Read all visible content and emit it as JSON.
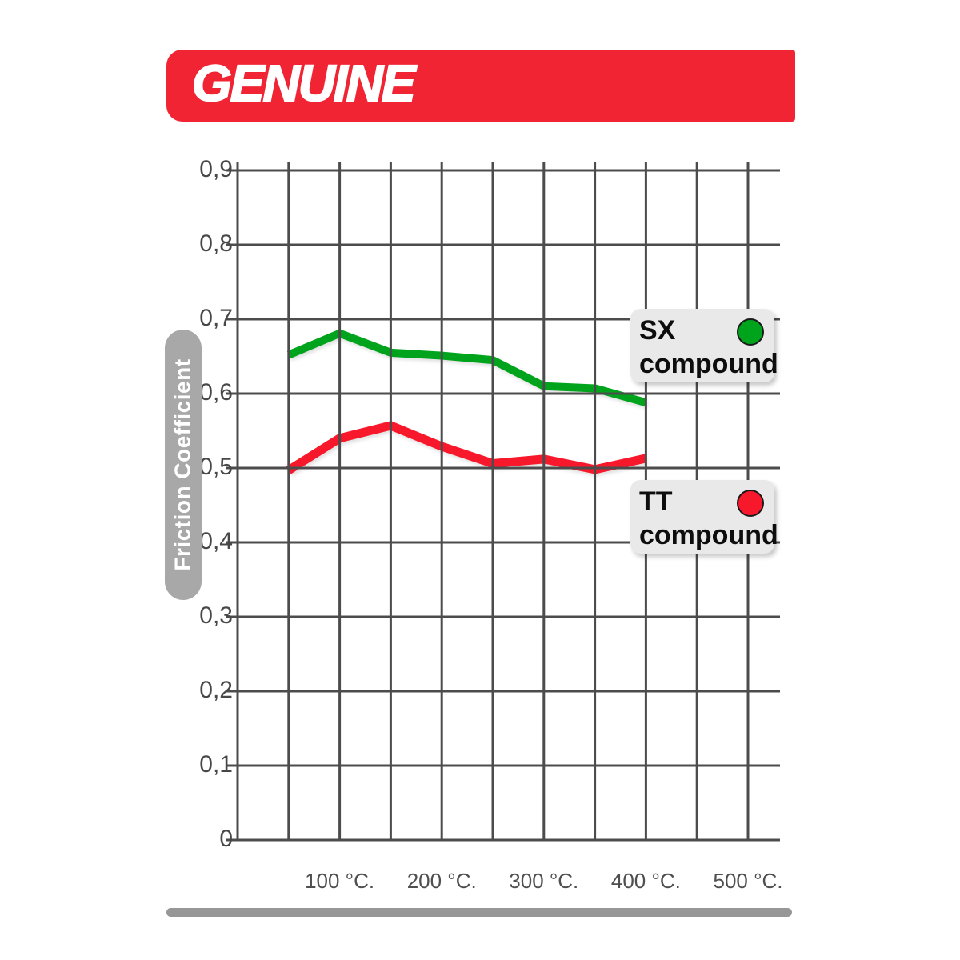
{
  "banner": {
    "title": "GENUINE",
    "bg_color": "#f02433"
  },
  "colors": {
    "banner_red": "#f02433",
    "sx_green": "#00a31c",
    "tt_red": "#f8182c",
    "grid": "#4c4c4c",
    "axis_text": "#4b4b4b",
    "ylabel_pill_gray": "#a8a8a8",
    "legend_bg": "#e9e9e9",
    "footer_bar_gray": "#979797"
  },
  "legend": [
    {
      "line1": "SX",
      "line2": "compound",
      "dot_color": "#00a31c"
    },
    {
      "line1": "TT",
      "line2": "compound",
      "dot_color": "#f8182c"
    }
  ],
  "chart_data": {
    "type": "line",
    "title": "",
    "ylabel": "Friction Coefficient",
    "x": [
      50,
      100,
      150,
      200,
      250,
      300,
      350,
      400
    ],
    "series": [
      {
        "name": "SX compound",
        "color": "#00a31c",
        "values": [
          0.652,
          0.681,
          0.655,
          0.651,
          0.645,
          0.61,
          0.607,
          0.588
        ]
      },
      {
        "name": "TT compound",
        "color": "#f8182c",
        "values": [
          0.497,
          0.54,
          0.557,
          0.529,
          0.506,
          0.512,
          0.498,
          0.513
        ]
      }
    ],
    "xlim": [
      0,
      530
    ],
    "ylim": [
      0,
      0.9
    ],
    "grid": true,
    "grid_step_x_celsius": 50,
    "grid_step_y": 0.1,
    "legend_position": "right-inside",
    "y_ticks": [
      {
        "value": 0.9,
        "label": "0,9"
      },
      {
        "value": 0.8,
        "label": "0,8"
      },
      {
        "value": 0.7,
        "label": "0,7"
      },
      {
        "value": 0.6,
        "label": "0,6"
      },
      {
        "value": 0.5,
        "label": "0,5"
      },
      {
        "value": 0.4,
        "label": "0,4"
      },
      {
        "value": 0.3,
        "label": "0,3"
      },
      {
        "value": 0.2,
        "label": "0,2"
      },
      {
        "value": 0.1,
        "label": "0,1"
      },
      {
        "value": 0.0,
        "label": "0"
      }
    ],
    "x_ticks": [
      {
        "value": 100,
        "label": "100 °C."
      },
      {
        "value": 200,
        "label": "200 °C."
      },
      {
        "value": 300,
        "label": "300 °C."
      },
      {
        "value": 400,
        "label": "400 °C."
      },
      {
        "value": 500,
        "label": "500 °C."
      }
    ]
  }
}
